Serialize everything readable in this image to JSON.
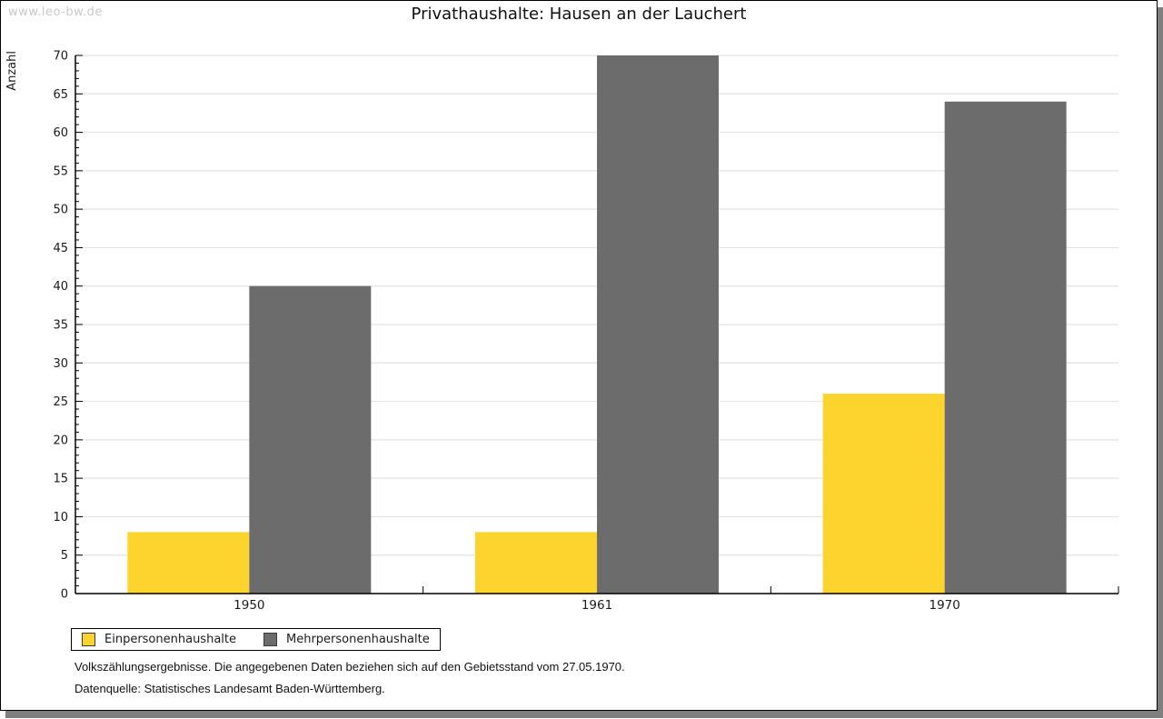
{
  "watermark": "www.leo-bw.de",
  "chart_data": {
    "type": "bar",
    "title": "Privathaushalte: Hausen an der Lauchert",
    "ylabel": "Anzahl",
    "xlabel": "",
    "categories": [
      "1950",
      "1961",
      "1970"
    ],
    "series": [
      {
        "name": "Einpersonenhaushalte",
        "color": "#FCD42D",
        "values": [
          8,
          8,
          26
        ]
      },
      {
        "name": "Mehrpersonenhaushalte",
        "color": "#6C6C6C",
        "values": [
          40,
          70,
          64
        ]
      }
    ],
    "ylim": [
      0,
      70
    ],
    "ytick_step": 5,
    "yminor_step": 1,
    "grid": true,
    "legend_position": "bottom-left"
  },
  "footnotes": [
    "Volkszählungsergebnisse. Die angegebenen Daten beziehen sich auf den Gebietsstand vom 27.05.1970.",
    "Datenquelle: Statistisches Landesamt Baden-Württemberg."
  ],
  "colors": {
    "background": "#FFFFFF",
    "axis": "#000000",
    "grid": "#E3E3E3",
    "text": "#1A1A1A",
    "watermark": "#C9C9C9",
    "shadow": "#7F7F7F"
  }
}
